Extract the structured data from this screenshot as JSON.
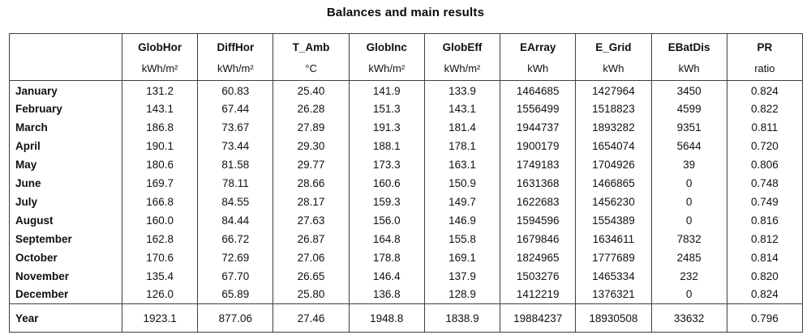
{
  "title": "Balances and main results",
  "table": {
    "columns": [
      {
        "label": "",
        "unit": ""
      },
      {
        "label": "GlobHor",
        "unit": "kWh/m²"
      },
      {
        "label": "DiffHor",
        "unit": "kWh/m²"
      },
      {
        "label": "T_Amb",
        "unit": "°C"
      },
      {
        "label": "GlobInc",
        "unit": "kWh/m²"
      },
      {
        "label": "GlobEff",
        "unit": "kWh/m²"
      },
      {
        "label": "EArray",
        "unit": "kWh"
      },
      {
        "label": "E_Grid",
        "unit": "kWh"
      },
      {
        "label": "EBatDis",
        "unit": "kWh"
      },
      {
        "label": "PR",
        "unit": "ratio"
      }
    ],
    "rows": [
      {
        "label": "January",
        "values": [
          "131.2",
          "60.83",
          "25.40",
          "141.9",
          "133.9",
          "1464685",
          "1427964",
          "3450",
          "0.824"
        ]
      },
      {
        "label": "February",
        "values": [
          "143.1",
          "67.44",
          "26.28",
          "151.3",
          "143.1",
          "1556499",
          "1518823",
          "4599",
          "0.822"
        ]
      },
      {
        "label": "March",
        "values": [
          "186.8",
          "73.67",
          "27.89",
          "191.3",
          "181.4",
          "1944737",
          "1893282",
          "9351",
          "0.811"
        ]
      },
      {
        "label": "April",
        "values": [
          "190.1",
          "73.44",
          "29.30",
          "188.1",
          "178.1",
          "1900179",
          "1654074",
          "5644",
          "0.720"
        ]
      },
      {
        "label": "May",
        "values": [
          "180.6",
          "81.58",
          "29.77",
          "173.3",
          "163.1",
          "1749183",
          "1704926",
          "39",
          "0.806"
        ]
      },
      {
        "label": "June",
        "values": [
          "169.7",
          "78.11",
          "28.66",
          "160.6",
          "150.9",
          "1631368",
          "1466865",
          "0",
          "0.748"
        ]
      },
      {
        "label": "July",
        "values": [
          "166.8",
          "84.55",
          "28.17",
          "159.3",
          "149.7",
          "1622683",
          "1456230",
          "0",
          "0.749"
        ]
      },
      {
        "label": "August",
        "values": [
          "160.0",
          "84.44",
          "27.63",
          "156.0",
          "146.9",
          "1594596",
          "1554389",
          "0",
          "0.816"
        ]
      },
      {
        "label": "September",
        "values": [
          "162.8",
          "66.72",
          "26.87",
          "164.8",
          "155.8",
          "1679846",
          "1634611",
          "7832",
          "0.812"
        ]
      },
      {
        "label": "October",
        "values": [
          "170.6",
          "72.69",
          "27.06",
          "178.8",
          "169.1",
          "1824965",
          "1777689",
          "2485",
          "0.814"
        ]
      },
      {
        "label": "November",
        "values": [
          "135.4",
          "67.70",
          "26.65",
          "146.4",
          "137.9",
          "1503276",
          "1465334",
          "232",
          "0.820"
        ]
      },
      {
        "label": "December",
        "values": [
          "126.0",
          "65.89",
          "25.80",
          "136.8",
          "128.9",
          "1412219",
          "1376321",
          "0",
          "0.824"
        ]
      }
    ],
    "footer": {
      "label": "Year",
      "values": [
        "1923.1",
        "877.06",
        "27.46",
        "1948.8",
        "1838.9",
        "19884237",
        "18930508",
        "33632",
        "0.796"
      ]
    }
  }
}
